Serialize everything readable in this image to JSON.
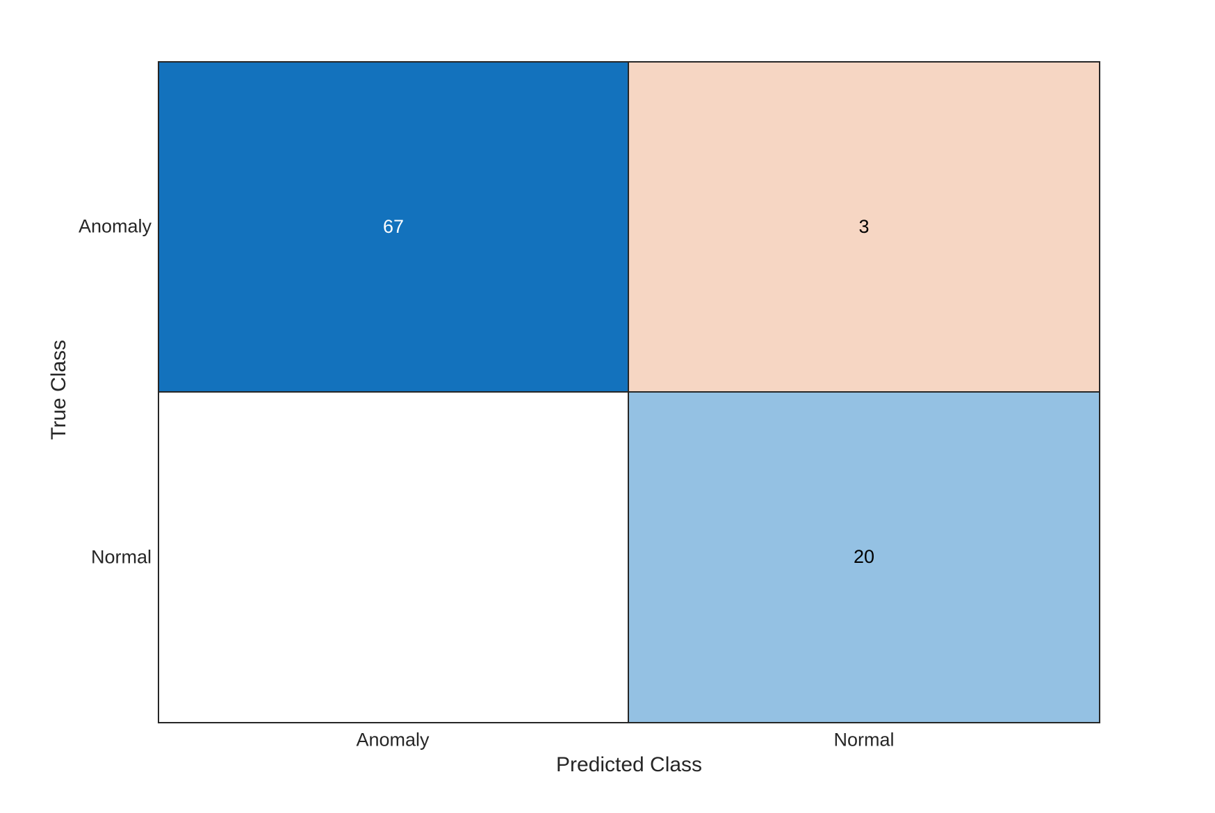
{
  "figure": {
    "background": "#ffffff",
    "border_color": "#262626",
    "text_color": "#262626"
  },
  "chart_data": {
    "type": "heatmap",
    "subtype": "confusion-matrix",
    "title": "",
    "xlabel": "Predicted Class",
    "ylabel": "True Class",
    "x_categories": [
      "Anomaly",
      "Normal"
    ],
    "y_categories": [
      "Anomaly",
      "Normal"
    ],
    "matrix": [
      [
        67,
        3
      ],
      [
        0,
        20
      ]
    ],
    "legend": "none",
    "grid": "cell-borders",
    "zero_cells_blank": true,
    "cells": [
      {
        "row": "Anomaly",
        "col": "Anomaly",
        "value": 67,
        "label": "67",
        "bg": "#1372bd",
        "fg": "#ffffff"
      },
      {
        "row": "Anomaly",
        "col": "Normal",
        "value": 3,
        "label": "3",
        "bg": "#f6d6c3",
        "fg": "#000000"
      },
      {
        "row": "Normal",
        "col": "Anomaly",
        "value": 0,
        "label": "",
        "bg": "#ffffff",
        "fg": "#000000"
      },
      {
        "row": "Normal",
        "col": "Normal",
        "value": 20,
        "label": "20",
        "bg": "#94c1e3",
        "fg": "#000000"
      }
    ]
  }
}
